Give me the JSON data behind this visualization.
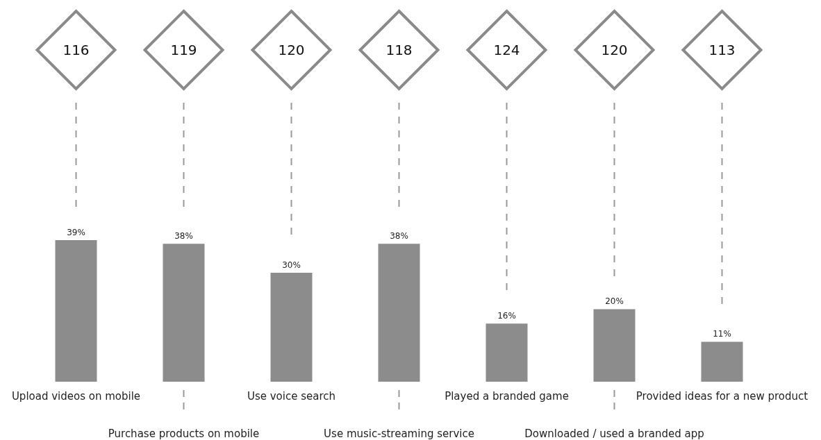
{
  "chart_data": {
    "type": "bar",
    "categories": [
      "Upload videos on mobile",
      "Purchase products on mobile",
      "Use voice search",
      "Use music-streaming service",
      "Played a branded game",
      "Downloaded / used a branded app",
      "Provided ideas for a new product"
    ],
    "values": [
      39,
      38,
      30,
      38,
      16,
      20,
      11
    ],
    "value_labels": [
      "39%",
      "38%",
      "30%",
      "38%",
      "16%",
      "20%",
      "11%"
    ],
    "color": "#8c8c8c",
    "grid": "x",
    "annotations": [
      "116",
      "119",
      "120",
      "118",
      "124",
      "120",
      "113"
    ]
  }
}
